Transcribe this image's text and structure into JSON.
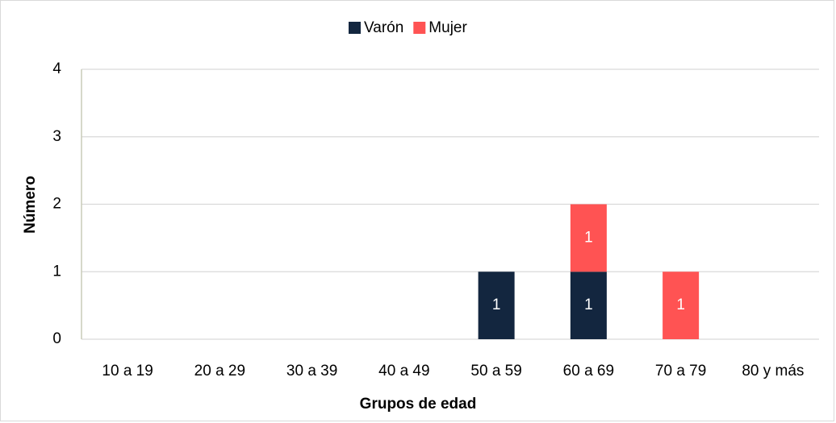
{
  "chart_data": {
    "type": "stacked_bar",
    "x_label": "Grupos de edad",
    "y_label": "Número",
    "categories": [
      "10 a 19",
      "20 a 29",
      "30 a 39",
      "40 a 49",
      "50 a 59",
      "60 a 69",
      "70 a 79",
      "80 y más"
    ],
    "series": [
      {
        "name": "Varón",
        "color": "#13263f",
        "values": [
          0,
          0,
          0,
          0,
          1,
          1,
          0,
          0
        ]
      },
      {
        "name": "Mujer",
        "color": "#ff5353",
        "values": [
          0,
          0,
          0,
          0,
          0,
          1,
          1,
          0
        ]
      }
    ],
    "ylim": [
      0,
      4
    ],
    "yticks": [
      0,
      1,
      2,
      3,
      4
    ],
    "grid": true,
    "legend": "top"
  }
}
